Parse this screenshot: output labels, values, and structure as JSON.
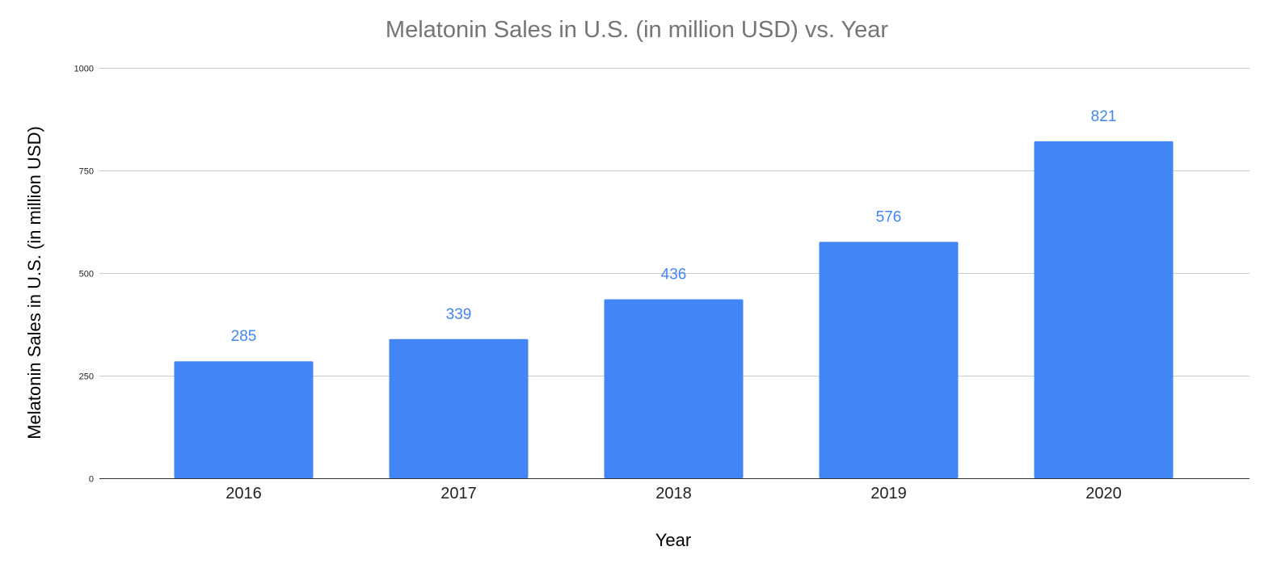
{
  "chart_data": {
    "type": "bar",
    "title": "Melatonin Sales in U.S. (in million USD) vs. Year",
    "xlabel": "Year",
    "ylabel": "Melatonin Sales in U.S. (in million USD)",
    "categories": [
      "2016",
      "2017",
      "2018",
      "2019",
      "2020"
    ],
    "series": [
      {
        "values": [
          285,
          339,
          436,
          576,
          821
        ]
      }
    ],
    "data_labels": [
      "285",
      "339",
      "436",
      "576",
      "821"
    ],
    "ylim": [
      0,
      1000
    ],
    "yticks": [
      0,
      250,
      500,
      750,
      1000
    ],
    "ytick_labels": [
      "0",
      "250",
      "500",
      "750",
      "1000"
    ],
    "grid": true,
    "legend": "none"
  },
  "colors": {
    "bar": "#4285f4",
    "data_label": "#4285f4",
    "gridline": "#cccccc",
    "baseline": "#333333",
    "title": "#757575"
  }
}
